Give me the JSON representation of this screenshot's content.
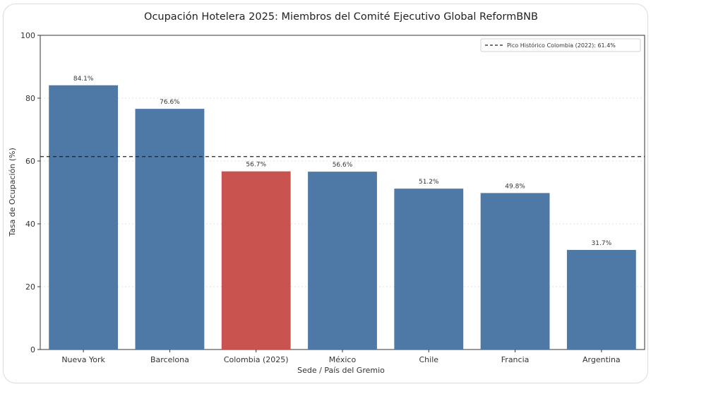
{
  "chart_data": {
    "type": "bar",
    "title": "Ocupación Hotelera 2025: Miembros del Comité Ejecutivo Global ReformBNB",
    "xlabel": "Sede / País del Gremio",
    "ylabel": "Tasa de Ocupación (%)",
    "ylim": [
      0,
      100
    ],
    "yticks": [
      0,
      20,
      40,
      60,
      80,
      100
    ],
    "grid": "horizontal, dotted",
    "legend_position": "top-right",
    "categories": [
      "Nueva York",
      "Barcelona",
      "Colombia (2025)",
      "México",
      "Chile",
      "Francia",
      "Argentina"
    ],
    "values": [
      84.1,
      76.6,
      56.7,
      56.6,
      51.2,
      49.8,
      31.7
    ],
    "value_labels": [
      "84.1%",
      "76.6%",
      "56.7%",
      "56.6%",
      "51.2%",
      "49.8%",
      "31.7%"
    ],
    "bar_colors": [
      "#4e79a7",
      "#4e79a7",
      "#c9534f",
      "#4e79a7",
      "#4e79a7",
      "#4e79a7",
      "#4e79a7"
    ],
    "reference_line": {
      "value": 61.4,
      "style": "dashed",
      "color": "#222222",
      "label": "Pico Histórico Colombia (2022): 61.4%"
    }
  }
}
